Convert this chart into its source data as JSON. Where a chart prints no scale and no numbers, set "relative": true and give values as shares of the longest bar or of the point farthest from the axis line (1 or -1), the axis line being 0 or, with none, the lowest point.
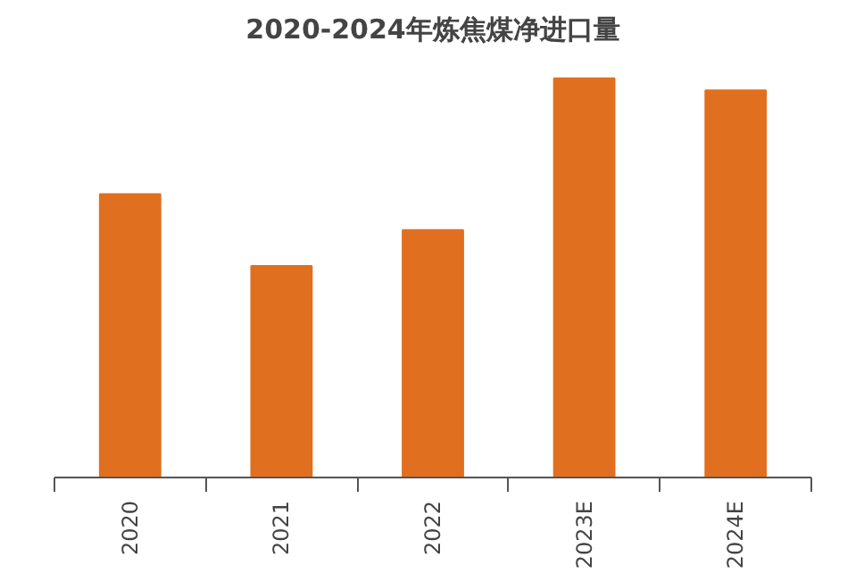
{
  "chart_data": {
    "type": "bar",
    "title": "2020-2024年炼焦煤净进口量",
    "categories": [
      "2020",
      "2021",
      "2022",
      "2023E",
      "2024E"
    ],
    "values": [
      0.71,
      0.53,
      0.62,
      1,
      0.97
    ],
    "color": "#e07020",
    "relative": true,
    "grid": false
  }
}
